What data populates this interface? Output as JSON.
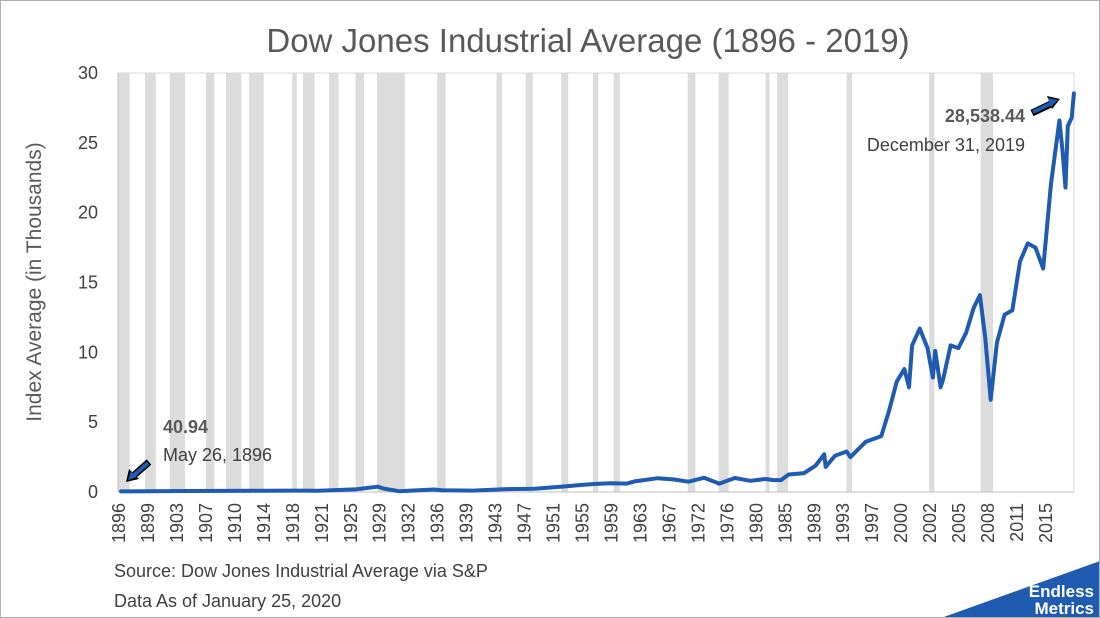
{
  "chart_data": {
    "type": "line",
    "title": "Dow Jones Industrial Average (1896 - 2019)",
    "ylabel": "Index Average (in Thousands)",
    "xlabel": "",
    "xlim": [
      1896,
      2020
    ],
    "ylim": [
      0,
      30
    ],
    "yticks": [
      0,
      5,
      10,
      15,
      20,
      25,
      30
    ],
    "xtick_labels": [
      "1896",
      "1899",
      "1903",
      "1907",
      "1910",
      "1914",
      "1918",
      "1921",
      "1925",
      "1929",
      "1932",
      "1936",
      "1939",
      "1943",
      "1947",
      "1951",
      "1955",
      "1959",
      "1963",
      "1967",
      "1972",
      "1976",
      "1980",
      "1985",
      "1989",
      "1993",
      "1997",
      "2000",
      "2002",
      "2005",
      "2008",
      "2011",
      "2015"
    ],
    "line_color": "#1f5bb0",
    "recession_color": "#dcdcdc",
    "recessions": [
      [
        1896.0,
        1897.5
      ],
      [
        1899.5,
        1900.9
      ],
      [
        1902.7,
        1904.7
      ],
      [
        1907.4,
        1908.5
      ],
      [
        1910.0,
        1912.0
      ],
      [
        1913.0,
        1914.9
      ],
      [
        1918.6,
        1919.2
      ],
      [
        1920.0,
        1921.5
      ],
      [
        1923.4,
        1924.6
      ],
      [
        1926.8,
        1927.9
      ],
      [
        1929.6,
        1933.2
      ],
      [
        1937.4,
        1938.5
      ],
      [
        1945.1,
        1945.8
      ],
      [
        1948.9,
        1949.8
      ],
      [
        1953.5,
        1954.4
      ],
      [
        1957.6,
        1958.3
      ],
      [
        1960.3,
        1961.1
      ],
      [
        1969.9,
        1970.9
      ],
      [
        1973.9,
        1975.2
      ],
      [
        1980.0,
        1980.5
      ],
      [
        1981.5,
        1982.9
      ],
      [
        1990.5,
        1991.2
      ],
      [
        2001.2,
        2001.9
      ],
      [
        2007.9,
        2009.5
      ]
    ],
    "series": [
      {
        "values": [
          [
            1896.4,
            0.041
          ],
          [
            1900,
            0.06
          ],
          [
            1905,
            0.07
          ],
          [
            1910,
            0.08
          ],
          [
            1915,
            0.09
          ],
          [
            1919,
            0.1
          ],
          [
            1922,
            0.09
          ],
          [
            1925,
            0.15
          ],
          [
            1927,
            0.2
          ],
          [
            1929.7,
            0.38
          ],
          [
            1930.5,
            0.24
          ],
          [
            1932.5,
            0.05
          ],
          [
            1934,
            0.1
          ],
          [
            1937,
            0.18
          ],
          [
            1938,
            0.13
          ],
          [
            1942,
            0.1
          ],
          [
            1946,
            0.2
          ],
          [
            1950,
            0.23
          ],
          [
            1954,
            0.4
          ],
          [
            1956,
            0.5
          ],
          [
            1958,
            0.58
          ],
          [
            1960,
            0.62
          ],
          [
            1962,
            0.6
          ],
          [
            1963,
            0.76
          ],
          [
            1966,
            0.99
          ],
          [
            1968,
            0.9
          ],
          [
            1970,
            0.74
          ],
          [
            1972,
            1.02
          ],
          [
            1974,
            0.6
          ],
          [
            1976,
            1.0
          ],
          [
            1978,
            0.8
          ],
          [
            1980,
            0.93
          ],
          [
            1981,
            0.85
          ],
          [
            1982,
            0.85
          ],
          [
            1983,
            1.25
          ],
          [
            1985,
            1.35
          ],
          [
            1986.5,
            1.9
          ],
          [
            1987.6,
            2.7
          ],
          [
            1987.8,
            1.8
          ],
          [
            1989,
            2.6
          ],
          [
            1990.5,
            2.9
          ],
          [
            1991,
            2.5
          ],
          [
            1993,
            3.6
          ],
          [
            1995,
            4.0
          ],
          [
            1996,
            5.8
          ],
          [
            1997,
            7.9
          ],
          [
            1998,
            8.8
          ],
          [
            1998.6,
            7.5
          ],
          [
            1999,
            10.5
          ],
          [
            2000,
            11.7
          ],
          [
            2001,
            10.3
          ],
          [
            2001.7,
            8.2
          ],
          [
            2002,
            10.1
          ],
          [
            2002.7,
            7.5
          ],
          [
            2003,
            8.0
          ],
          [
            2004,
            10.5
          ],
          [
            2005,
            10.3
          ],
          [
            2006,
            11.4
          ],
          [
            2007,
            13.2
          ],
          [
            2007.8,
            14.1
          ],
          [
            2008.5,
            11.0
          ],
          [
            2009.2,
            6.6
          ],
          [
            2010,
            10.7
          ],
          [
            2011,
            12.7
          ],
          [
            2012,
            13.0
          ],
          [
            2013,
            16.5
          ],
          [
            2014,
            17.8
          ],
          [
            2015,
            17.5
          ],
          [
            2016,
            16.0
          ],
          [
            2017,
            22.0
          ],
          [
            2018.1,
            26.6
          ],
          [
            2018.5,
            24.5
          ],
          [
            2018.9,
            21.8
          ],
          [
            2019.2,
            26.2
          ],
          [
            2019.7,
            26.8
          ],
          [
            2019.99,
            28.54
          ]
        ]
      }
    ],
    "annotations": [
      {
        "value": "40.94",
        "date": "May 26, 1896",
        "x": 1896.4,
        "y": 0.041
      },
      {
        "value": "28,538.44",
        "date": "December 31, 2019",
        "x": 2019.99,
        "y": 28.54
      }
    ],
    "source_line1": "Source: Dow Jones Industrial Average via S&P",
    "source_line2": "Data As of January 25, 2020",
    "brand_line1": "Endless",
    "brand_line2": "Metrics"
  }
}
